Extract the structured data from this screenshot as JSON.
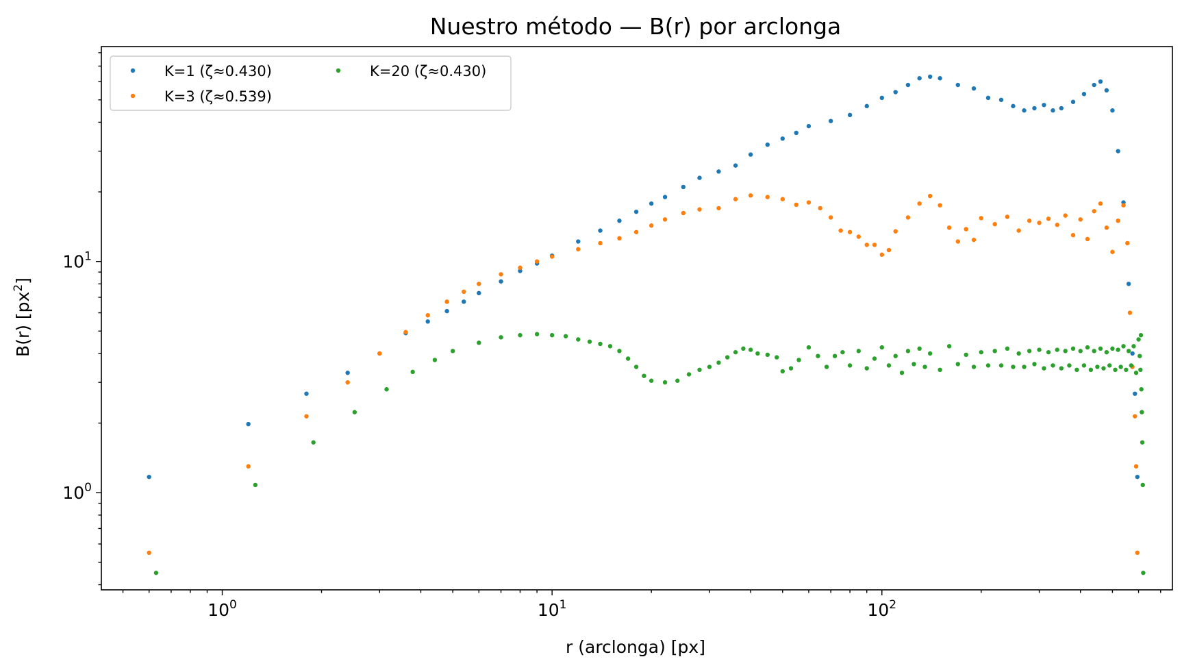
{
  "chart_data": {
    "type": "scatter",
    "title": "Nuestro método — B(r) por arclonga",
    "xlabel": "r (arclonga) [px]",
    "ylabel": "B(r) [px",
    "ylabel_sup": "2",
    "ylabel_close": "]",
    "xscale": "log",
    "yscale": "log",
    "xlim": [
      0.43,
      760
    ],
    "ylim": [
      0.38,
      85
    ],
    "grid": false,
    "legend_position": "top-left",
    "legend_columns": 2,
    "x_major_ticks": [
      {
        "value": 1,
        "base": "10",
        "exp": "0"
      },
      {
        "value": 10,
        "base": "10",
        "exp": "1"
      },
      {
        "value": 100,
        "base": "10",
        "exp": "2"
      }
    ],
    "y_major_ticks": [
      {
        "value": 1,
        "base": "10",
        "exp": "0"
      },
      {
        "value": 10,
        "base": "10",
        "exp": "1"
      }
    ],
    "series": [
      {
        "name": "K=1 (ζ≈0.430)",
        "color": "#1f77b4",
        "points": [
          [
            0.6,
            1.17
          ],
          [
            1.2,
            1.98
          ],
          [
            1.8,
            2.68
          ],
          [
            2.4,
            3.3
          ],
          [
            3.0,
            4.0
          ],
          [
            3.6,
            4.9
          ],
          [
            4.2,
            5.5
          ],
          [
            4.8,
            6.1
          ],
          [
            5.4,
            6.7
          ],
          [
            6.0,
            7.3
          ],
          [
            7.0,
            8.2
          ],
          [
            8.0,
            9.1
          ],
          [
            9.0,
            9.8
          ],
          [
            10.0,
            10.6
          ],
          [
            12.0,
            12.2
          ],
          [
            14.0,
            13.6
          ],
          [
            16.0,
            15.0
          ],
          [
            18.0,
            16.4
          ],
          [
            20.0,
            17.8
          ],
          [
            22.0,
            19.0
          ],
          [
            25.0,
            21.0
          ],
          [
            28.0,
            23.0
          ],
          [
            32.0,
            24.5
          ],
          [
            36.0,
            26.0
          ],
          [
            40.0,
            29.0
          ],
          [
            45.0,
            32.0
          ],
          [
            50.0,
            34.0
          ],
          [
            55.0,
            36.0
          ],
          [
            60.0,
            38.5
          ],
          [
            70.0,
            40.5
          ],
          [
            80.0,
            43.0
          ],
          [
            90.0,
            47.0
          ],
          [
            100.0,
            51.0
          ],
          [
            110.0,
            54.0
          ],
          [
            120.0,
            58.0
          ],
          [
            130.0,
            62.0
          ],
          [
            140.0,
            63.0
          ],
          [
            150.0,
            62.0
          ],
          [
            170.0,
            58.0
          ],
          [
            190.0,
            56.0
          ],
          [
            210.0,
            51.0
          ],
          [
            230.0,
            50.0
          ],
          [
            250.0,
            47.0
          ],
          [
            270.0,
            45.0
          ],
          [
            290.0,
            46.0
          ],
          [
            310.0,
            47.5
          ],
          [
            330.0,
            45.0
          ],
          [
            350.0,
            46.0
          ],
          [
            380.0,
            49.0
          ],
          [
            410.0,
            53.0
          ],
          [
            440.0,
            58.0
          ],
          [
            460.0,
            60.0
          ],
          [
            480.0,
            55.0
          ],
          [
            500.0,
            45.0
          ],
          [
            520.0,
            30.0
          ],
          [
            540.0,
            18.0
          ],
          [
            560.0,
            8.0
          ],
          [
            575.0,
            4.0
          ],
          [
            585.0,
            2.68
          ],
          [
            595.0,
            1.17
          ]
        ]
      },
      {
        "name": "K=3 (ζ≈0.539)",
        "color": "#ff7f0e",
        "points": [
          [
            0.6,
            0.55
          ],
          [
            1.2,
            1.3
          ],
          [
            1.8,
            2.14
          ],
          [
            2.4,
            3.0
          ],
          [
            3.0,
            4.0
          ],
          [
            3.6,
            4.95
          ],
          [
            4.2,
            5.85
          ],
          [
            4.8,
            6.7
          ],
          [
            5.4,
            7.4
          ],
          [
            6.0,
            8.0
          ],
          [
            7.0,
            8.8
          ],
          [
            8.0,
            9.4
          ],
          [
            9.0,
            10.0
          ],
          [
            10.0,
            10.5
          ],
          [
            12.0,
            11.3
          ],
          [
            14.0,
            12.0
          ],
          [
            16.0,
            12.6
          ],
          [
            18.0,
            13.4
          ],
          [
            20.0,
            14.3
          ],
          [
            22.0,
            15.2
          ],
          [
            25.0,
            16.2
          ],
          [
            28.0,
            16.8
          ],
          [
            32.0,
            17.0
          ],
          [
            36.0,
            18.6
          ],
          [
            40.0,
            19.3
          ],
          [
            45.0,
            19.0
          ],
          [
            50.0,
            18.6
          ],
          [
            55.0,
            17.6
          ],
          [
            60.0,
            18.0
          ],
          [
            65.0,
            17.0
          ],
          [
            70.0,
            15.5
          ],
          [
            75.0,
            13.6
          ],
          [
            80.0,
            13.4
          ],
          [
            85.0,
            12.8
          ],
          [
            90.0,
            11.8
          ],
          [
            95.0,
            11.8
          ],
          [
            100.0,
            10.7
          ],
          [
            105.0,
            11.2
          ],
          [
            110.0,
            13.5
          ],
          [
            120.0,
            15.5
          ],
          [
            130.0,
            17.8
          ],
          [
            140.0,
            19.2
          ],
          [
            150.0,
            17.5
          ],
          [
            160.0,
            14.0
          ],
          [
            170.0,
            12.2
          ],
          [
            180.0,
            13.8
          ],
          [
            190.0,
            12.4
          ],
          [
            200.0,
            15.4
          ],
          [
            220.0,
            14.5
          ],
          [
            240.0,
            15.6
          ],
          [
            260.0,
            13.6
          ],
          [
            280.0,
            15.0
          ],
          [
            300.0,
            14.7
          ],
          [
            320.0,
            15.3
          ],
          [
            340.0,
            14.4
          ],
          [
            360.0,
            15.8
          ],
          [
            380.0,
            13.0
          ],
          [
            400.0,
            15.2
          ],
          [
            420.0,
            12.5
          ],
          [
            440.0,
            16.5
          ],
          [
            460.0,
            17.8
          ],
          [
            480.0,
            14.0
          ],
          [
            500.0,
            11.0
          ],
          [
            520.0,
            15.0
          ],
          [
            540.0,
            17.5
          ],
          [
            555.0,
            12.0
          ],
          [
            565.0,
            6.0
          ],
          [
            575.0,
            3.5
          ],
          [
            585.0,
            2.14
          ],
          [
            590.0,
            1.3
          ],
          [
            595.0,
            0.55
          ]
        ]
      },
      {
        "name": "K=20 (ζ≈0.430)",
        "color": "#2ca02c",
        "points": [
          [
            0.63,
            0.45
          ],
          [
            1.26,
            1.08
          ],
          [
            1.89,
            1.65
          ],
          [
            2.52,
            2.23
          ],
          [
            3.15,
            2.8
          ],
          [
            3.78,
            3.33
          ],
          [
            4.41,
            3.75
          ],
          [
            5.0,
            4.1
          ],
          [
            6.0,
            4.45
          ],
          [
            7.0,
            4.7
          ],
          [
            8.0,
            4.8
          ],
          [
            9.0,
            4.85
          ],
          [
            10.0,
            4.8
          ],
          [
            11.0,
            4.75
          ],
          [
            12.0,
            4.6
          ],
          [
            13.0,
            4.5
          ],
          [
            14.0,
            4.4
          ],
          [
            15.0,
            4.3
          ],
          [
            16.0,
            4.1
          ],
          [
            17.0,
            3.8
          ],
          [
            18.0,
            3.5
          ],
          [
            19.0,
            3.2
          ],
          [
            20.0,
            3.05
          ],
          [
            22.0,
            3.0
          ],
          [
            24.0,
            3.05
          ],
          [
            26.0,
            3.25
          ],
          [
            28.0,
            3.4
          ],
          [
            30.0,
            3.5
          ],
          [
            32.0,
            3.65
          ],
          [
            34.0,
            3.85
          ],
          [
            36.0,
            4.05
          ],
          [
            38.0,
            4.2
          ],
          [
            40.0,
            4.15
          ],
          [
            42.0,
            4.0
          ],
          [
            45.0,
            3.95
          ],
          [
            48.0,
            3.85
          ],
          [
            50.0,
            3.35
          ],
          [
            53.0,
            3.45
          ],
          [
            56.0,
            3.75
          ],
          [
            60.0,
            4.25
          ],
          [
            64.0,
            3.9
          ],
          [
            68.0,
            3.5
          ],
          [
            72.0,
            3.9
          ],
          [
            76.0,
            4.05
          ],
          [
            80.0,
            3.55
          ],
          [
            85.0,
            4.1
          ],
          [
            90.0,
            3.45
          ],
          [
            95.0,
            3.8
          ],
          [
            100.0,
            4.25
          ],
          [
            105.0,
            3.55
          ],
          [
            110.0,
            3.9
          ],
          [
            115.0,
            3.3
          ],
          [
            120.0,
            4.1
          ],
          [
            125.0,
            3.6
          ],
          [
            130.0,
            4.2
          ],
          [
            135.0,
            3.5
          ],
          [
            140.0,
            4.0
          ],
          [
            150.0,
            3.4
          ],
          [
            160.0,
            4.3
          ],
          [
            170.0,
            3.6
          ],
          [
            180.0,
            3.95
          ],
          [
            190.0,
            3.5
          ],
          [
            200.0,
            4.05
          ],
          [
            210.0,
            3.55
          ],
          [
            220.0,
            4.1
          ],
          [
            230.0,
            3.55
          ],
          [
            240.0,
            4.2
          ],
          [
            250.0,
            3.5
          ],
          [
            260.0,
            4.0
          ],
          [
            270.0,
            3.5
          ],
          [
            280.0,
            4.1
          ],
          [
            290.0,
            3.6
          ],
          [
            300.0,
            4.15
          ],
          [
            310.0,
            3.45
          ],
          [
            320.0,
            4.05
          ],
          [
            330.0,
            3.55
          ],
          [
            340.0,
            4.15
          ],
          [
            350.0,
            3.45
          ],
          [
            360.0,
            4.1
          ],
          [
            370.0,
            3.55
          ],
          [
            380.0,
            4.2
          ],
          [
            390.0,
            3.4
          ],
          [
            400.0,
            4.1
          ],
          [
            410.0,
            3.55
          ],
          [
            420.0,
            4.25
          ],
          [
            430.0,
            3.4
          ],
          [
            440.0,
            4.1
          ],
          [
            450.0,
            3.5
          ],
          [
            460.0,
            4.2
          ],
          [
            470.0,
            3.45
          ],
          [
            480.0,
            4.05
          ],
          [
            490.0,
            3.55
          ],
          [
            500.0,
            4.2
          ],
          [
            510.0,
            3.4
          ],
          [
            520.0,
            4.15
          ],
          [
            530.0,
            3.5
          ],
          [
            540.0,
            4.3
          ],
          [
            550.0,
            3.4
          ],
          [
            560.0,
            4.1
          ],
          [
            570.0,
            3.55
          ],
          [
            580.0,
            4.3
          ],
          [
            590.0,
            3.3
          ],
          [
            600.0,
            4.6
          ],
          [
            605.0,
            3.9
          ],
          [
            608.0,
            3.4
          ],
          [
            610.0,
            4.8
          ],
          [
            612.0,
            2.8
          ],
          [
            614.0,
            2.23
          ],
          [
            616.0,
            1.65
          ],
          [
            618.0,
            1.08
          ],
          [
            620.0,
            0.45
          ]
        ]
      }
    ]
  }
}
